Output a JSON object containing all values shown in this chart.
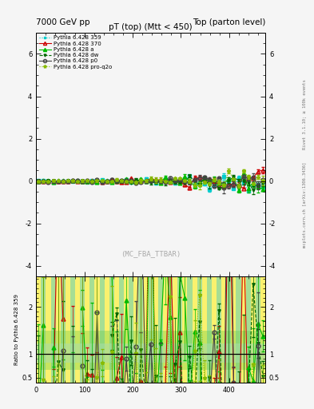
{
  "title_left": "7000 GeV pp",
  "title_right": "Top (parton level)",
  "plot_title": "pT (top) (Mtt < 450)",
  "watermark": "(MC_FBA_TTBAR)",
  "right_label1": "Rivet 3.1.10; ≥ 100k events",
  "right_label2": "mcplots.cern.ch [arXiv:1306.3436]",
  "ylabel_ratio": "Ratio to Pythia 6.428 359",
  "xlim": [
    0,
    475
  ],
  "ylim_main": [
    -4.5,
    7.0
  ],
  "ylim_ratio": [
    0.4,
    2.65
  ],
  "ratio_yticks": [
    0.5,
    1.0,
    2.0
  ],
  "main_yticks": [
    -4,
    -2,
    0,
    2,
    4,
    6
  ],
  "xticks": [
    0,
    100,
    200,
    300,
    400
  ],
  "series": [
    {
      "label": "Pythia 6.428 359",
      "color": "#00CCCC",
      "marker": "s",
      "linestyle": ":",
      "linewidth": 0.8,
      "markersize": 2.5,
      "fillstyle": "full"
    },
    {
      "label": "Pythia 6.428 370",
      "color": "#CC0000",
      "marker": "^",
      "linestyle": "-",
      "linewidth": 0.8,
      "markersize": 3.5,
      "fillstyle": "none"
    },
    {
      "label": "Pythia 6.428 a",
      "color": "#00BB00",
      "marker": "^",
      "linestyle": "-",
      "linewidth": 0.8,
      "markersize": 3.5,
      "fillstyle": "full"
    },
    {
      "label": "Pythia 6.428 dw",
      "color": "#006600",
      "marker": "v",
      "linestyle": "--",
      "linewidth": 0.8,
      "markersize": 2.5,
      "fillstyle": "full"
    },
    {
      "label": "Pythia 6.428 p0",
      "color": "#444444",
      "marker": "o",
      "linestyle": "-",
      "linewidth": 0.8,
      "markersize": 3.5,
      "fillstyle": "none"
    },
    {
      "label": "Pythia 6.428 pro-q2o",
      "color": "#88BB00",
      "marker": "*",
      "linestyle": ":",
      "linewidth": 0.8,
      "markersize": 3.5,
      "fillstyle": "full"
    }
  ],
  "bg_color": "#F5F5F5",
  "ratio_band_yellow": "#FFEE00",
  "ratio_band_green1": "#66CC44",
  "ratio_band_green2": "#AADDAA"
}
